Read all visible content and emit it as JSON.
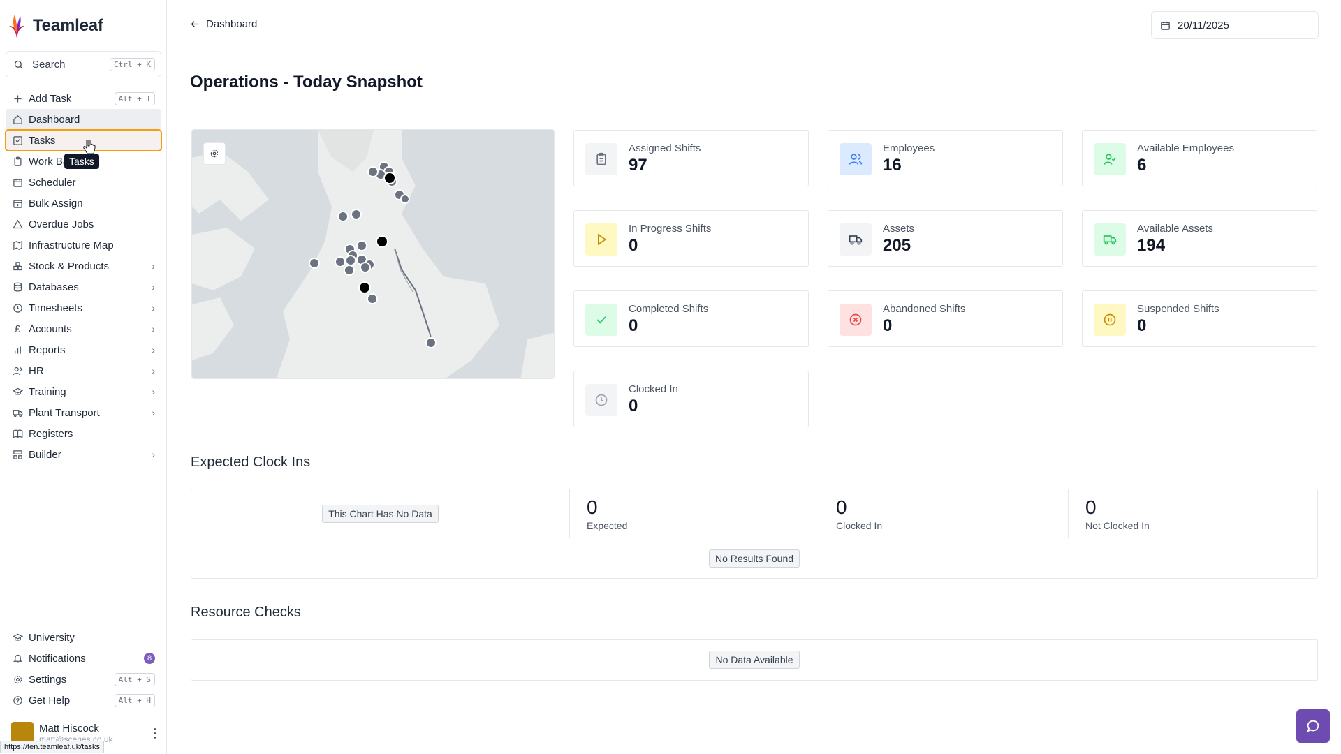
{
  "app": {
    "name": "Teamleaf"
  },
  "search": {
    "label": "Search",
    "shortcut": "Ctrl + K"
  },
  "sidebar": {
    "items": [
      {
        "label": "Add Task",
        "icon": "plus-icon",
        "shortcut": "Alt + T"
      },
      {
        "label": "Dashboard",
        "icon": "home-icon"
      },
      {
        "label": "Tasks",
        "icon": "checklist-icon"
      },
      {
        "label": "Work Ba",
        "icon": "clipboard-icon"
      },
      {
        "label": "Scheduler",
        "icon": "calendar-icon"
      },
      {
        "label": "Bulk Assign",
        "icon": "calendar-plus-icon"
      },
      {
        "label": "Overdue Jobs",
        "icon": "warning-icon"
      },
      {
        "label": "Infrastructure Map",
        "icon": "map-icon"
      },
      {
        "label": "Stock & Products",
        "icon": "boxes-icon"
      },
      {
        "label": "Databases",
        "icon": "database-icon"
      },
      {
        "label": "Timesheets",
        "icon": "clock-icon"
      },
      {
        "label": "Accounts",
        "icon": "pound-icon"
      },
      {
        "label": "Reports",
        "icon": "bar-chart-icon"
      },
      {
        "label": "HR",
        "icon": "users-icon"
      },
      {
        "label": "Training",
        "icon": "graduation-cap-icon"
      },
      {
        "label": "Plant Transport",
        "icon": "truck-icon"
      },
      {
        "label": "Registers",
        "icon": "book-icon"
      },
      {
        "label": "Builder",
        "icon": "layout-icon"
      }
    ],
    "bottom": [
      {
        "label": "University",
        "icon": "graduation-cap-icon"
      },
      {
        "label": "Notifications",
        "icon": "bell-icon",
        "badge": "8"
      },
      {
        "label": "Settings",
        "icon": "gear-icon",
        "shortcut": "Alt + S"
      },
      {
        "label": "Get Help",
        "icon": "help-icon",
        "shortcut": "Alt + H"
      }
    ],
    "tooltip": "Tasks"
  },
  "user": {
    "name": "Matt Hiscock",
    "email": "matt@scenes.co.uk"
  },
  "status_url": "https://ten.teamleaf.uk/tasks",
  "header": {
    "back_label": "Dashboard",
    "date": "20/11/2025"
  },
  "main": {
    "title": "Operations - Today Snapshot",
    "stats": [
      {
        "label": "Assigned Shifts",
        "value": "97",
        "icon": "clipboard-icon",
        "color": "#6b7280",
        "bg": "#f3f4f6"
      },
      {
        "label": "Employees",
        "value": "16",
        "icon": "users-icon",
        "color": "#3b82f6",
        "bg": "#dbeafe"
      },
      {
        "label": "Available Employees",
        "value": "6",
        "icon": "user-check-icon",
        "color": "#22c55e",
        "bg": "#dcfce7"
      },
      {
        "label": "In Progress Shifts",
        "value": "0",
        "icon": "play-icon",
        "color": "#ca8a04",
        "bg": "#fef9c3"
      },
      {
        "label": "Assets",
        "value": "205",
        "icon": "truck-icon",
        "color": "#374151",
        "bg": "#f3f4f6"
      },
      {
        "label": "Available Assets",
        "value": "194",
        "icon": "truck-icon",
        "color": "#22c55e",
        "bg": "#dcfce7"
      },
      {
        "label": "Completed Shifts",
        "value": "0",
        "icon": "check-icon",
        "color": "#22c55e",
        "bg": "#dcfce7"
      },
      {
        "label": "Abandoned Shifts",
        "value": "0",
        "icon": "x-circle-icon",
        "color": "#ef4444",
        "bg": "#fee2e2"
      },
      {
        "label": "Suspended Shifts",
        "value": "0",
        "icon": "pause-circle-icon",
        "color": "#ca8a04",
        "bg": "#fef9c3"
      },
      {
        "label": "Clocked In",
        "value": "0",
        "icon": "clock-icon",
        "color": "#9ca3af",
        "bg": "#f3f4f6"
      }
    ],
    "expected": {
      "title": "Expected Clock Ins",
      "chart_empty": "This Chart Has No Data",
      "metrics": [
        {
          "value": "0",
          "label": "Expected"
        },
        {
          "value": "0",
          "label": "Clocked In"
        },
        {
          "value": "0",
          "label": "Not Clocked In"
        }
      ],
      "empty": "No Results Found"
    },
    "resource": {
      "title": "Resource Checks",
      "empty": "No Data Available"
    }
  },
  "colors": {
    "accent": "#6d4bb0",
    "hover_outline": "#f59e0b",
    "active_bg": "#eceef1"
  }
}
